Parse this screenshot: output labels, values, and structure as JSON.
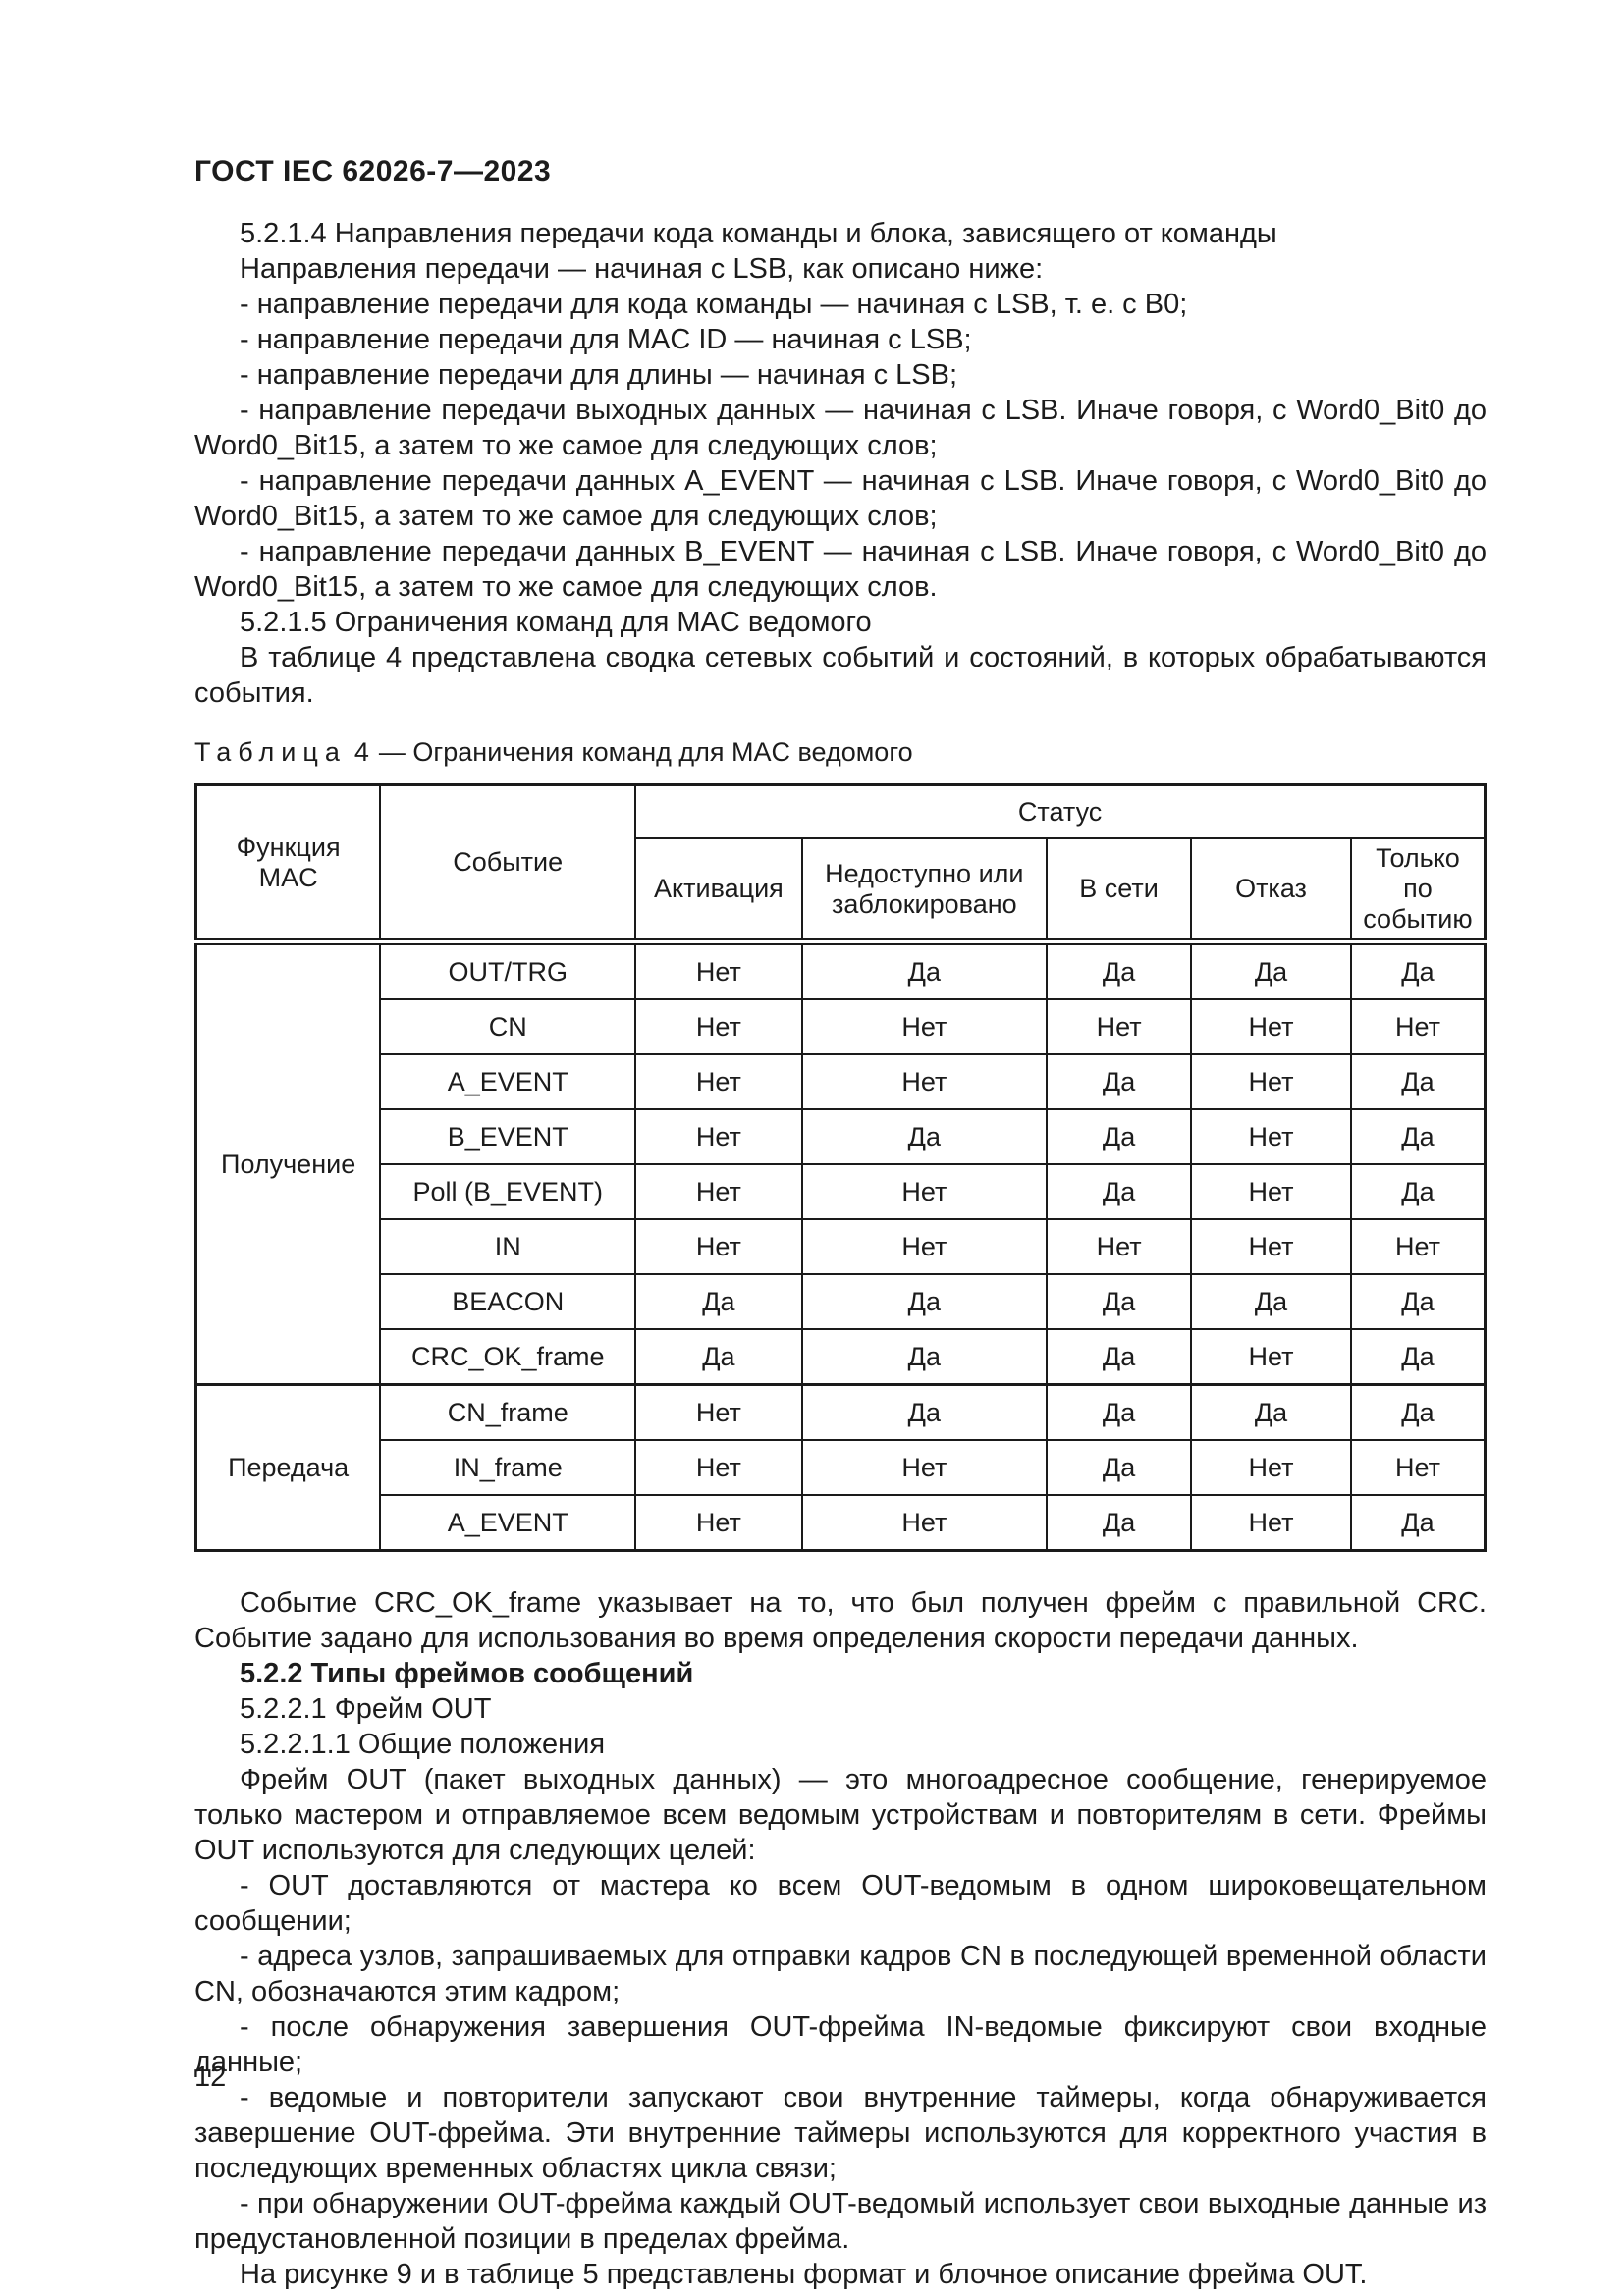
{
  "document": {
    "header_title": "ГОСТ IEC 62026-7—2023",
    "page_number": "12"
  },
  "sections_before_table": [
    {
      "text": "5.2.1.4 Направления передачи кода команды и блока, зависящего от команды",
      "bold": false
    },
    {
      "text": "Направления передачи — начиная с LSB, как описано ниже:",
      "bold": false
    },
    {
      "text": "- направление передачи для кода команды — начиная с LSB, т. е. с B0;",
      "bold": false
    },
    {
      "text": "- направление передачи для MAC ID — начиная с LSB;",
      "bold": false
    },
    {
      "text": "- направление передачи для длины — начиная с LSB;",
      "bold": false
    },
    {
      "text": "- направление передачи выходных данных — начиная с LSB. Иначе говоря, с Word0_Bit0 до Word0_Bit15, а затем то же самое для следующих слов;",
      "bold": false
    },
    {
      "text": "- направление передачи данных A_EVENT — начиная с LSB. Иначе говоря, с Word0_Bit0 до Word0_Bit15, а затем то же самое для следующих слов;",
      "bold": false
    },
    {
      "text": "- направление передачи данных B_EVENT — начиная с LSB. Иначе говоря, с Word0_Bit0 до Word0_Bit15, а затем то же самое для следующих слов.",
      "bold": false
    },
    {
      "text": "5.2.1.5 Ограничения команд для MAC ведомого",
      "bold": false
    },
    {
      "text": "В таблице 4 представлена сводка сетевых событий и состояний, в которых обрабатываются со­бытия.",
      "bold": false
    }
  ],
  "table4": {
    "caption_label": "Таблица",
    "caption_number": "4",
    "caption_dash": "—",
    "caption_title": "Ограничения команд для MAC ведомого",
    "header": {
      "function_col": "Функция MAC",
      "event_col": "Событие",
      "status_group": "Статус",
      "status_columns": [
        "Активация",
        "Недоступно или заблокировано",
        "В сети",
        "Отказ",
        "Только по событию"
      ]
    },
    "yes_label": "Да",
    "no_label": "Нет",
    "groups": [
      {
        "label": "Получение",
        "rows": [
          {
            "event": "OUT/TRG",
            "values": [
              "Нет",
              "Да",
              "Да",
              "Да",
              "Да"
            ]
          },
          {
            "event": "CN",
            "values": [
              "Нет",
              "Нет",
              "Нет",
              "Нет",
              "Нет"
            ]
          },
          {
            "event": "A_EVENT",
            "values": [
              "Нет",
              "Нет",
              "Да",
              "Нет",
              "Да"
            ]
          },
          {
            "event": "B_EVENT",
            "values": [
              "Нет",
              "Да",
              "Да",
              "Нет",
              "Да"
            ]
          },
          {
            "event": "Poll (B_EVENT)",
            "values": [
              "Нет",
              "Нет",
              "Да",
              "Нет",
              "Да"
            ]
          },
          {
            "event": "IN",
            "values": [
              "Нет",
              "Нет",
              "Нет",
              "Нет",
              "Нет"
            ]
          },
          {
            "event": "BEACON",
            "values": [
              "Да",
              "Да",
              "Да",
              "Да",
              "Да"
            ]
          },
          {
            "event": "CRC_OK_frame",
            "values": [
              "Да",
              "Да",
              "Да",
              "Нет",
              "Да"
            ]
          }
        ]
      },
      {
        "label": "Передача",
        "rows": [
          {
            "event": "CN_frame",
            "values": [
              "Нет",
              "Да",
              "Да",
              "Да",
              "Да"
            ]
          },
          {
            "event": "IN_frame",
            "values": [
              "Нет",
              "Нет",
              "Да",
              "Нет",
              "Нет"
            ]
          },
          {
            "event": "A_EVENT",
            "values": [
              "Нет",
              "Нет",
              "Да",
              "Нет",
              "Да"
            ]
          }
        ]
      }
    ]
  },
  "sections_after_table": [
    {
      "text": "Событие CRC_OK_frame указывает на то, что был получен фрейм с правильной CRC. Событие задано для использования во время определения скорости передачи данных.",
      "bold": false
    },
    {
      "text": "5.2.2 Типы фреймов сообщений",
      "bold": true
    },
    {
      "text": "5.2.2.1 Фрейм OUT",
      "bold": false
    },
    {
      "text": "5.2.2.1.1 Общие положения",
      "bold": false
    },
    {
      "text": "Фрейм OUT (пакет выходных данных) — это многоадресное сообщение, генерируемое только ма­стером и отправляемое всем ведомым устройствам и повторителям в сети. Фреймы OUT используются для следующих целей:",
      "bold": false
    },
    {
      "text": "- OUT доставляются от мастера ко всем OUT-ведомым в одном широковещательном сообщении;",
      "bold": false
    },
    {
      "text": "- адреса узлов, запрашиваемых для отправки кадров CN в последующей временной области CN, обозначаются этим кадром;",
      "bold": false
    },
    {
      "text": "- после обнаружения завершения OUT-фрейма IN-ведомые фиксируют свои входные данные;",
      "bold": false
    },
    {
      "text": "- ведомые и повторители запускают свои внутренние таймеры, когда обнаруживается заверше­ние OUT-фрейма. Эти внутренние таймеры используются для корректного участия в последующих вре­менных областях цикла связи;",
      "bold": false
    },
    {
      "text": "- при обнаружении OUT-фрейма каждый OUT-ведомый использует свои выходные данные из предустановленной позиции в пределах фрейма.",
      "bold": false
    },
    {
      "text": "На рисунке 9 и в таблице 5 представлены формат и блочное описание фрейма OUT.",
      "bold": false
    }
  ]
}
